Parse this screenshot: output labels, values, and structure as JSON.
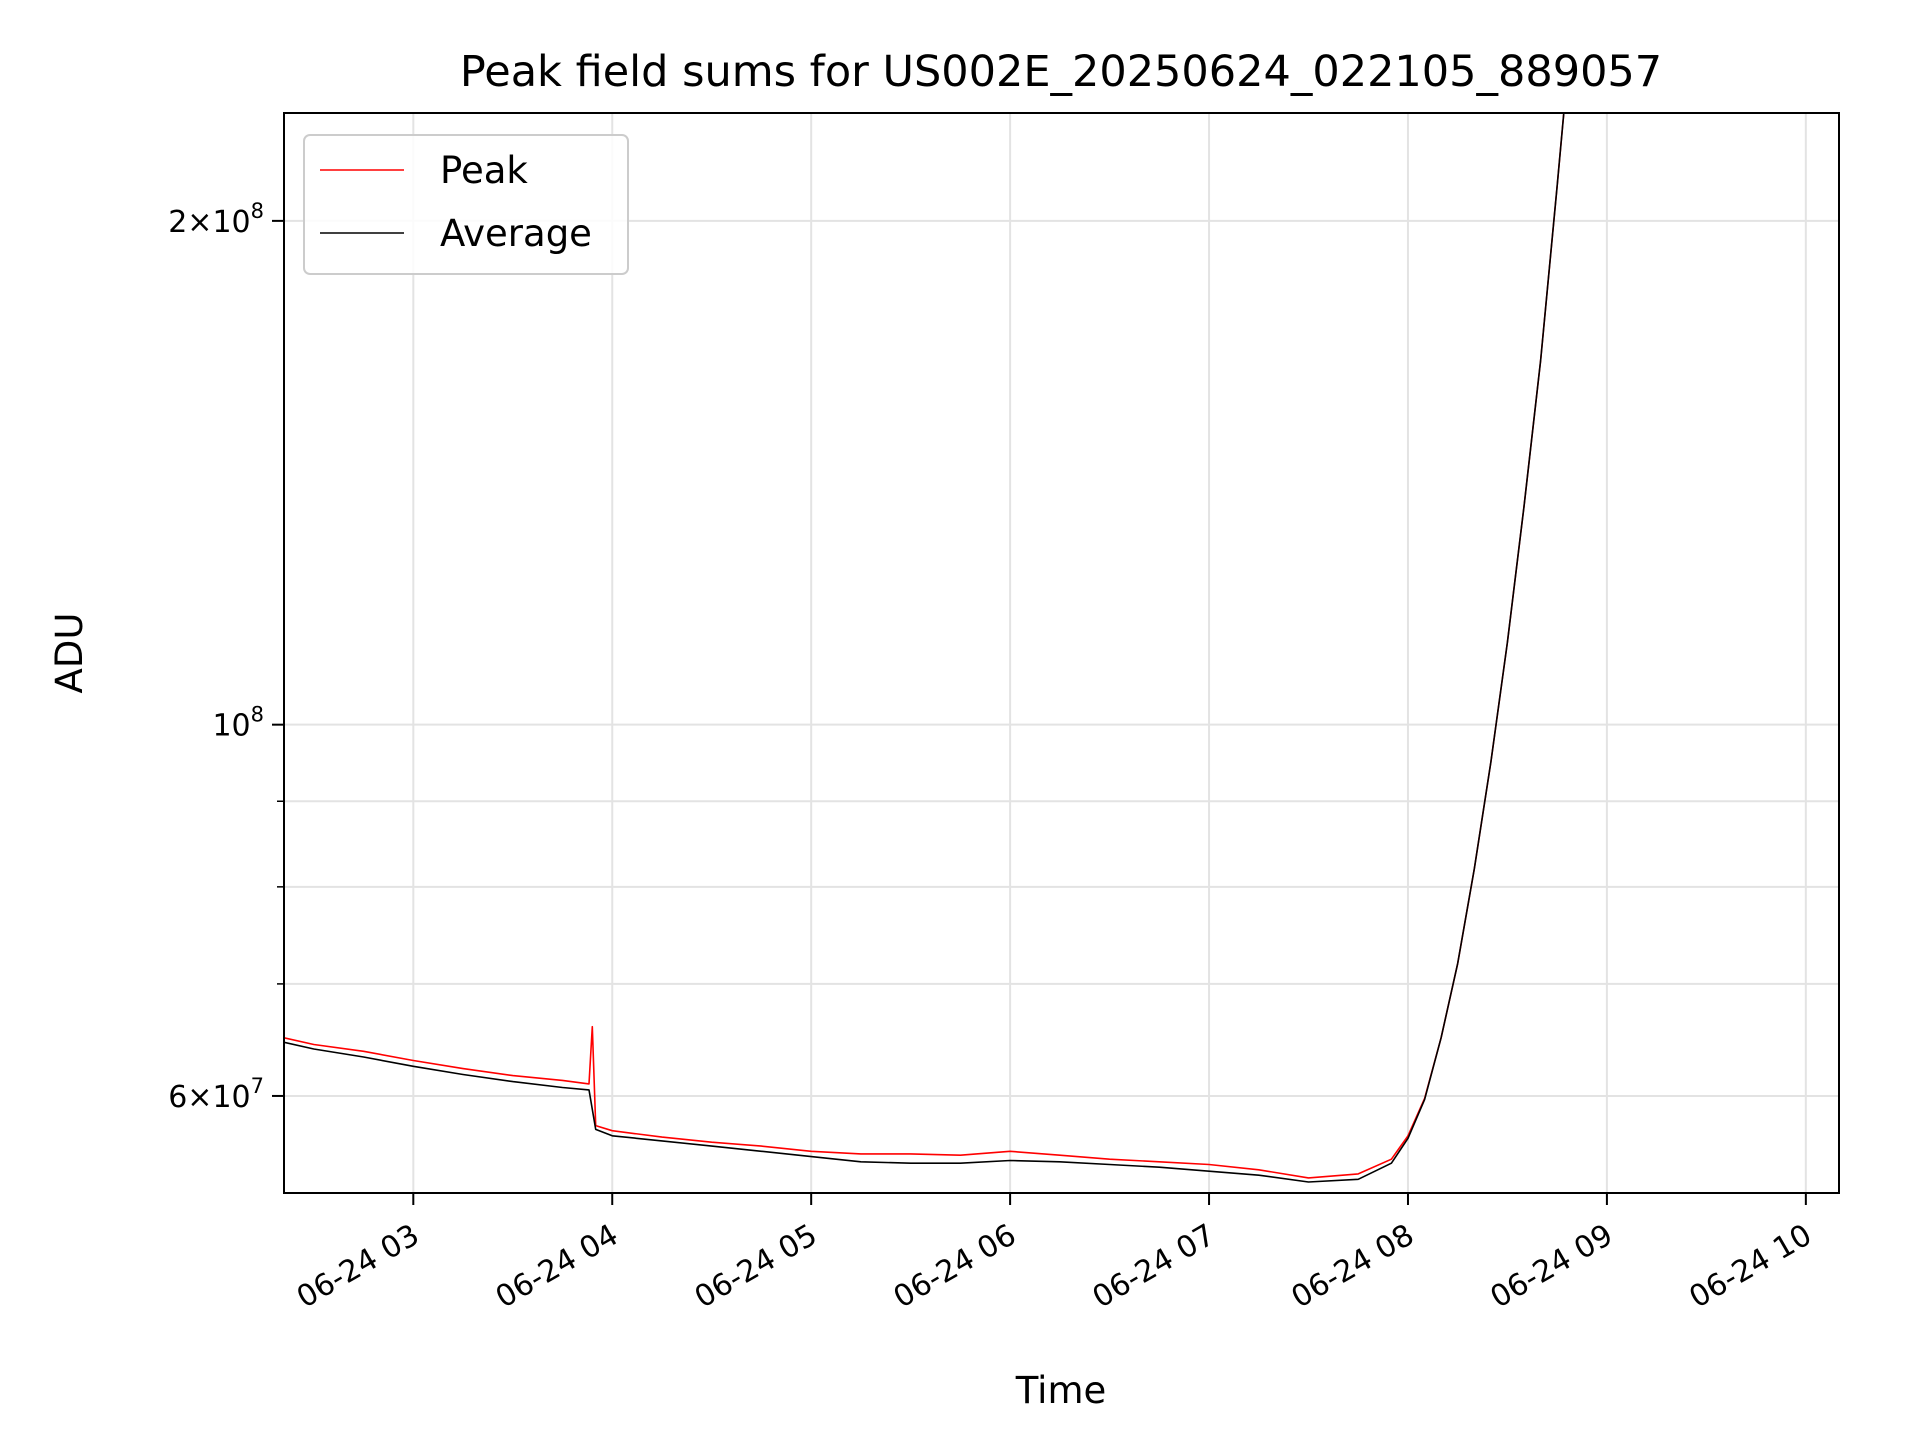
{
  "chart_data": {
    "type": "line",
    "title": "Peak field sums for US002E_20250624_022105_889057",
    "xlabel": "Time",
    "ylabel": "ADU",
    "yscale": "log",
    "grid": true,
    "legend_position": "upper-left",
    "xlim": [
      "2025-06-24 02:21",
      "2025-06-24 10:10"
    ],
    "ylim": [
      52500000,
      232000000
    ],
    "x_ticks": [
      {
        "label": "06-24 03",
        "time": "2025-06-24 03:00"
      },
      {
        "label": "06-24 04",
        "time": "2025-06-24 04:00"
      },
      {
        "label": "06-24 05",
        "time": "2025-06-24 05:00"
      },
      {
        "label": "06-24 06",
        "time": "2025-06-24 06:00"
      },
      {
        "label": "06-24 07",
        "time": "2025-06-24 07:00"
      },
      {
        "label": "06-24 08",
        "time": "2025-06-24 08:00"
      },
      {
        "label": "06-24 09",
        "time": "2025-06-24 09:00"
      },
      {
        "label": "06-24 10",
        "time": "2025-06-24 10:00"
      }
    ],
    "y_ticks_major": [
      {
        "value": 60000000,
        "mantissa": "6",
        "base": "10",
        "exp": "7"
      },
      {
        "value": 100000000,
        "mantissa": "",
        "base": "10",
        "exp": "8"
      },
      {
        "value": 200000000,
        "mantissa": "2",
        "base": "10",
        "exp": "8"
      }
    ],
    "y_ticks_minor": [
      70000000,
      80000000,
      90000000
    ],
    "series": [
      {
        "name": "Peak",
        "color": "#ff0000",
        "x": [
          "2025-06-24 02:21",
          "2025-06-24 02:30",
          "2025-06-24 02:45",
          "2025-06-24 03:00",
          "2025-06-24 03:15",
          "2025-06-24 03:30",
          "2025-06-24 03:45",
          "2025-06-24 03:53",
          "2025-06-24 03:54",
          "2025-06-24 03:55",
          "2025-06-24 04:00",
          "2025-06-24 04:15",
          "2025-06-24 04:30",
          "2025-06-24 04:45",
          "2025-06-24 05:00",
          "2025-06-24 05:15",
          "2025-06-24 05:30",
          "2025-06-24 05:45",
          "2025-06-24 06:00",
          "2025-06-24 06:15",
          "2025-06-24 06:30",
          "2025-06-24 06:45",
          "2025-06-24 07:00",
          "2025-06-24 07:15",
          "2025-06-24 07:30",
          "2025-06-24 07:45",
          "2025-06-24 07:55",
          "2025-06-24 08:00",
          "2025-06-24 08:05",
          "2025-06-24 08:10",
          "2025-06-24 08:15",
          "2025-06-24 08:20",
          "2025-06-24 08:25",
          "2025-06-24 08:30",
          "2025-06-24 08:35",
          "2025-06-24 08:40",
          "2025-06-24 08:45",
          "2025-06-24 08:47"
        ],
        "y": [
          65000000,
          64400000,
          63800000,
          63000000,
          62300000,
          61700000,
          61300000,
          61000000,
          66000000,
          57600000,
          57200000,
          56700000,
          56300000,
          56000000,
          55600000,
          55400000,
          55400000,
          55300000,
          55600000,
          55300000,
          55000000,
          54800000,
          54600000,
          54200000,
          53600000,
          53900000,
          55000000,
          56800000,
          59800000,
          65000000,
          72000000,
          82000000,
          95000000,
          112000000,
          135000000,
          165000000,
          210000000,
          232000000
        ]
      },
      {
        "name": "Average",
        "color": "#000000",
        "x": [
          "2025-06-24 02:21",
          "2025-06-24 02:30",
          "2025-06-24 02:45",
          "2025-06-24 03:00",
          "2025-06-24 03:15",
          "2025-06-24 03:30",
          "2025-06-24 03:45",
          "2025-06-24 03:53",
          "2025-06-24 03:55",
          "2025-06-24 04:00",
          "2025-06-24 04:15",
          "2025-06-24 04:30",
          "2025-06-24 04:45",
          "2025-06-24 05:00",
          "2025-06-24 05:15",
          "2025-06-24 05:30",
          "2025-06-24 05:45",
          "2025-06-24 06:00",
          "2025-06-24 06:15",
          "2025-06-24 06:30",
          "2025-06-24 06:45",
          "2025-06-24 07:00",
          "2025-06-24 07:15",
          "2025-06-24 07:30",
          "2025-06-24 07:45",
          "2025-06-24 07:55",
          "2025-06-24 08:00",
          "2025-06-24 08:05",
          "2025-06-24 08:10",
          "2025-06-24 08:15",
          "2025-06-24 08:20",
          "2025-06-24 08:25",
          "2025-06-24 08:30",
          "2025-06-24 08:35",
          "2025-06-24 08:40",
          "2025-06-24 08:45",
          "2025-06-24 08:47"
        ],
        "y": [
          64600000,
          64000000,
          63300000,
          62500000,
          61800000,
          61200000,
          60700000,
          60500000,
          57300000,
          56800000,
          56400000,
          56000000,
          55600000,
          55200000,
          54800000,
          54700000,
          54700000,
          54900000,
          54800000,
          54600000,
          54400000,
          54100000,
          53800000,
          53300000,
          53500000,
          54700000,
          56600000,
          59700000,
          65000000,
          72000000,
          82000000,
          95000000,
          112000000,
          135000000,
          165000000,
          210000000,
          232000000
        ]
      }
    ]
  }
}
